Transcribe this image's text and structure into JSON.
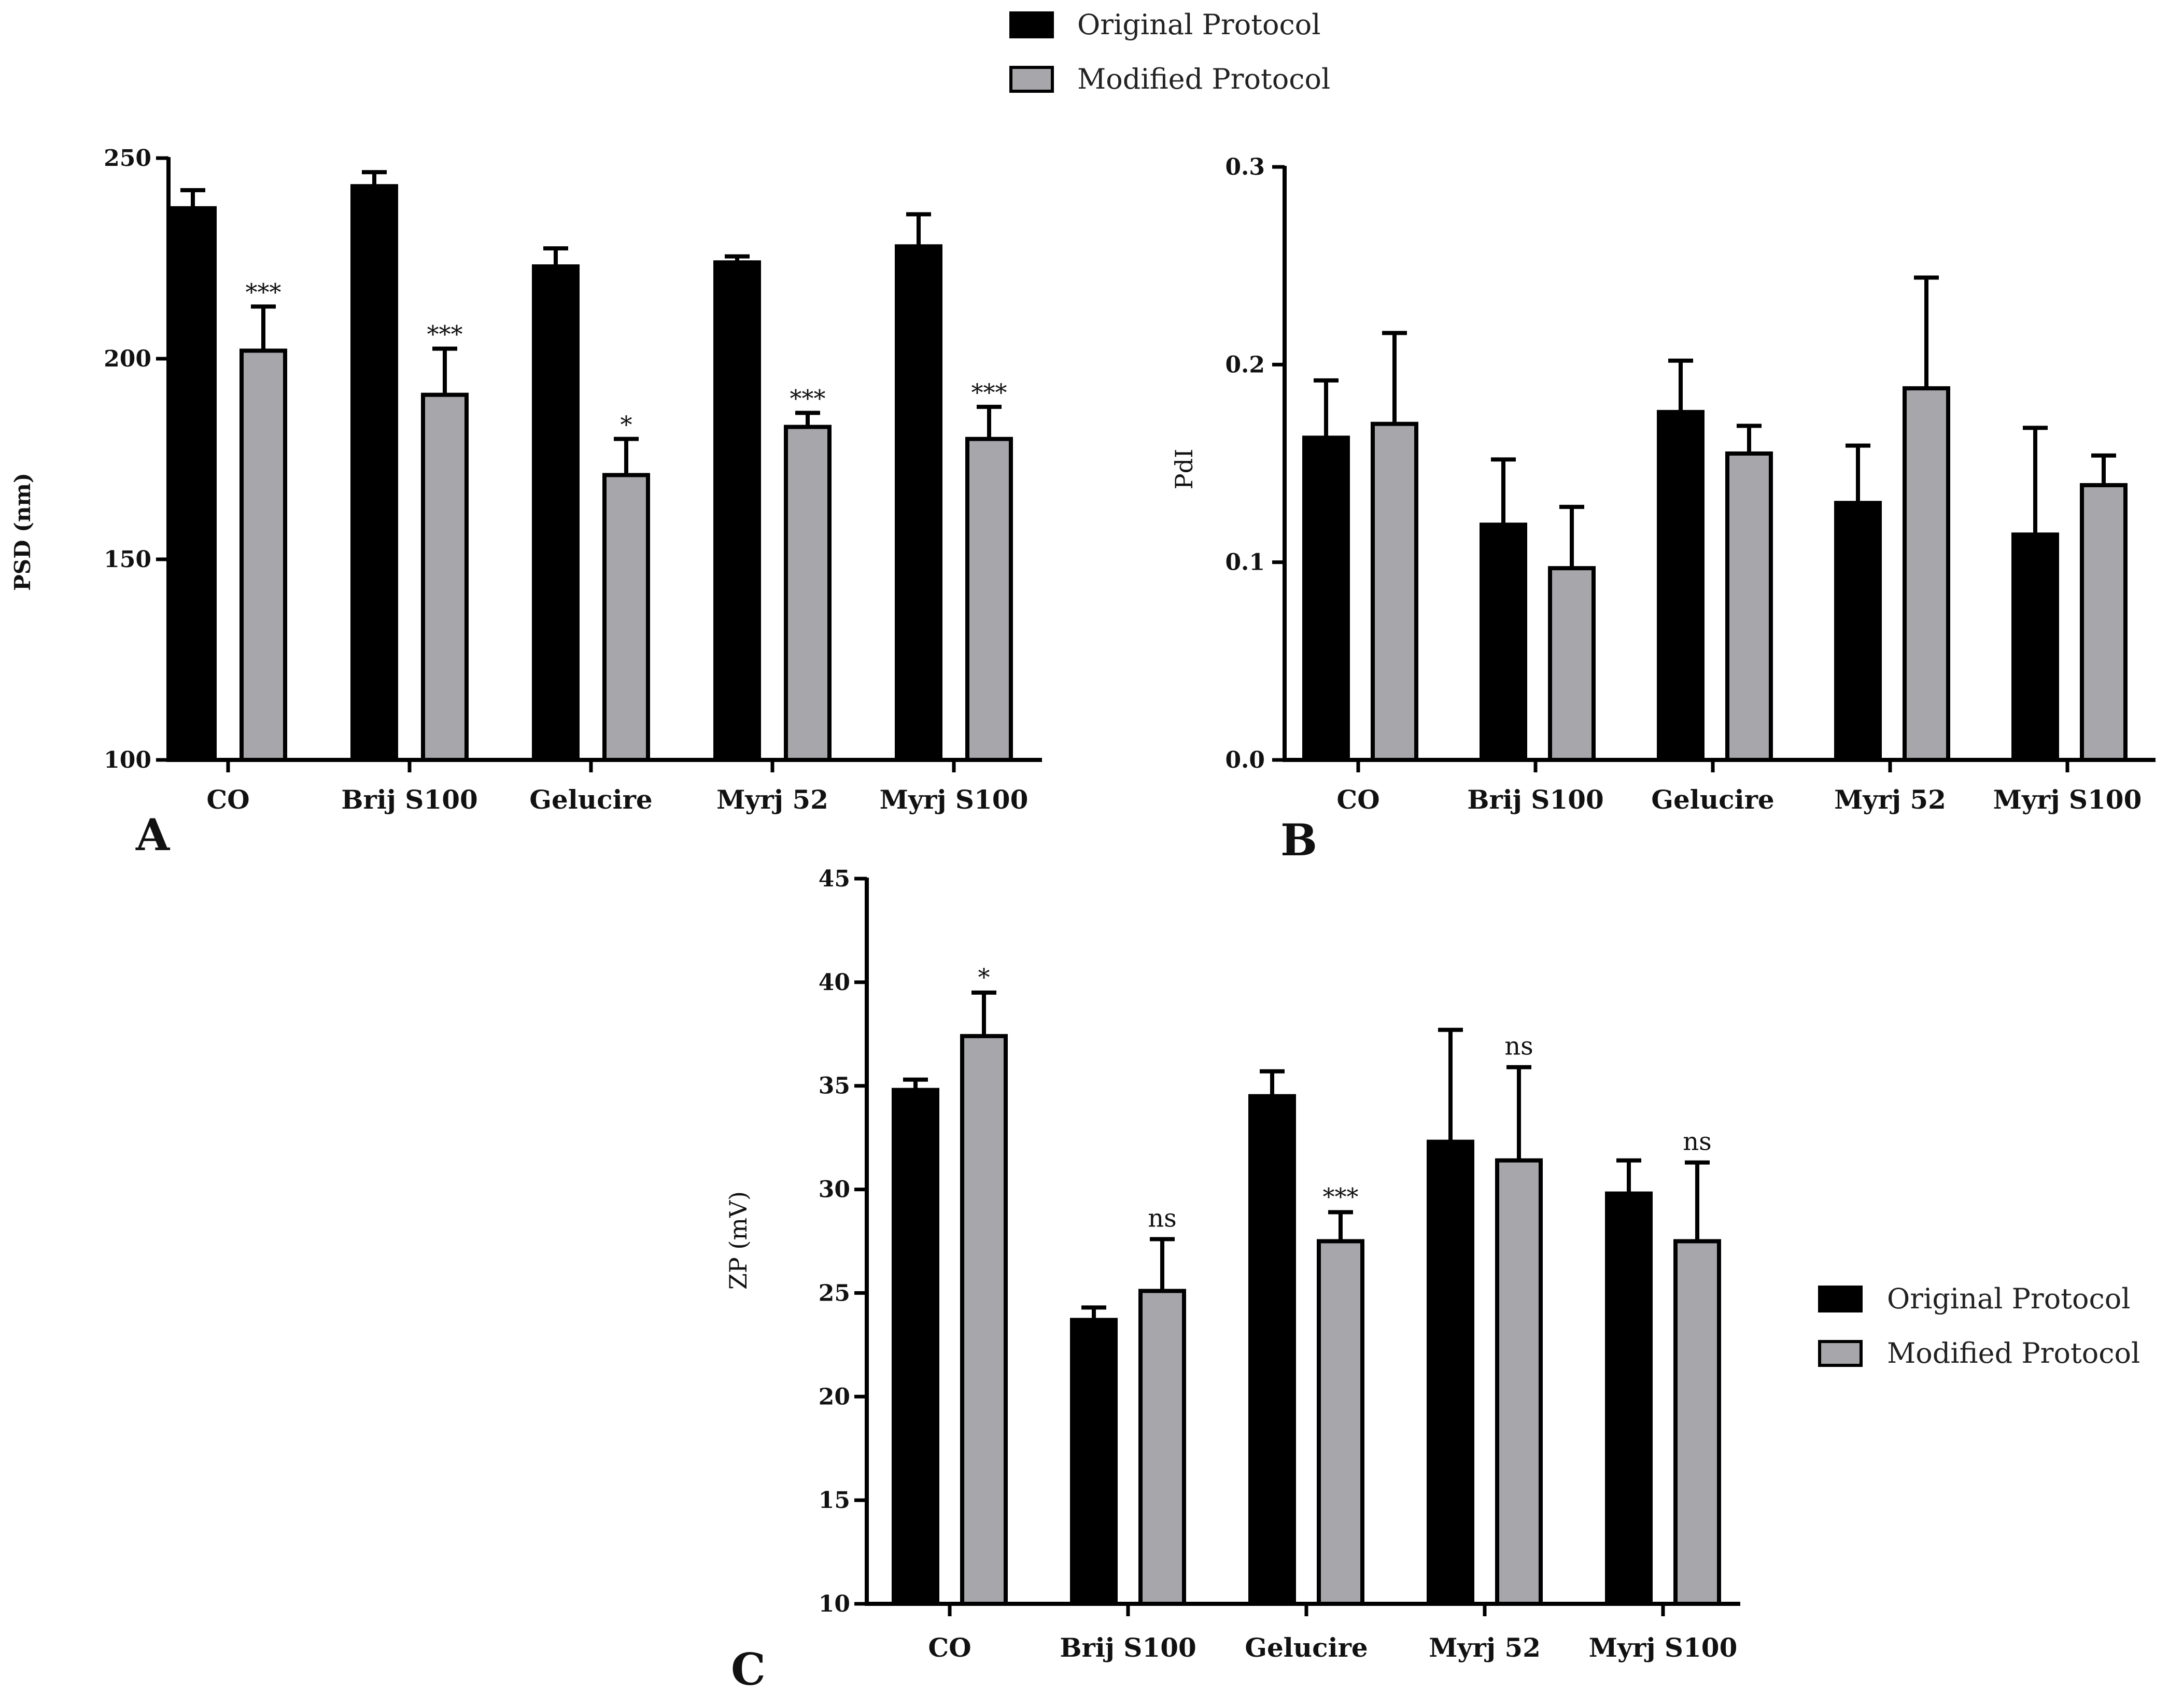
{
  "legend": {
    "original_label": "Original Protocol",
    "modified_label": "Modified Protocol",
    "original_color": "#000000",
    "modified_color": "#a6a6ab"
  },
  "chart_data": [
    {
      "type": "bar",
      "panel_label": "A",
      "title": "",
      "xlabel": "",
      "ylabel": "PSD (nm)",
      "ylim": [
        100,
        250
      ],
      "yticks": [
        100,
        150,
        200,
        250
      ],
      "categories": [
        "CO",
        "Brij S100",
        "Gelucire",
        "Myrj 52",
        "Myrj S100"
      ],
      "series": [
        {
          "name": "Original Protocol",
          "values": [
            237.5,
            243,
            223,
            224,
            228
          ],
          "errors": [
            4.5,
            3.5,
            4.5,
            1.5,
            8
          ]
        },
        {
          "name": "Modified Protocol",
          "values": [
            202,
            191,
            171,
            183,
            180
          ],
          "errors": [
            11,
            11.5,
            9,
            3.5,
            8
          ]
        }
      ],
      "significance": [
        "***",
        "***",
        "*",
        "***",
        "***"
      ]
    },
    {
      "type": "bar",
      "panel_label": "B",
      "title": "",
      "xlabel": "",
      "ylabel": "PdI",
      "ylim": [
        0,
        0.3
      ],
      "yticks": [
        "0.0",
        "0.1",
        "0.2",
        "0.3"
      ],
      "categories": [
        "CO",
        "Brij S100",
        "Gelucire",
        "Myrj 52",
        "Myrj S100"
      ],
      "series": [
        {
          "name": "Original Protocol",
          "values": [
            0.163,
            0.119,
            0.176,
            0.13,
            0.114
          ],
          "errors": [
            0.029,
            0.033,
            0.026,
            0.029,
            0.054
          ]
        },
        {
          "name": "Modified Protocol",
          "values": [
            0.17,
            0.097,
            0.155,
            0.188,
            0.139
          ],
          "errors": [
            0.046,
            0.031,
            0.014,
            0.056,
            0.015
          ]
        }
      ],
      "significance": []
    },
    {
      "type": "bar",
      "panel_label": "C",
      "title": "",
      "xlabel": "",
      "ylabel": "ZP (mV)",
      "ylim": [
        10,
        45
      ],
      "yticks": [
        10,
        15,
        20,
        25,
        30,
        35,
        40,
        45
      ],
      "categories": [
        "CO",
        "Brij S100",
        "Gelucire",
        "Myrj 52",
        "Myrj S100"
      ],
      "series": [
        {
          "name": "Original Protocol",
          "values": [
            34.8,
            23.7,
            34.5,
            32.3,
            29.8
          ],
          "errors": [
            0.5,
            0.6,
            1.2,
            5.4,
            1.6
          ]
        },
        {
          "name": "Modified Protocol",
          "values": [
            37.4,
            25.1,
            27.5,
            31.4,
            27.5
          ],
          "errors": [
            2.1,
            2.5,
            1.4,
            4.5,
            3.8
          ]
        }
      ],
      "significance": [
        "*",
        "ns",
        "***",
        "ns",
        "ns"
      ]
    }
  ]
}
